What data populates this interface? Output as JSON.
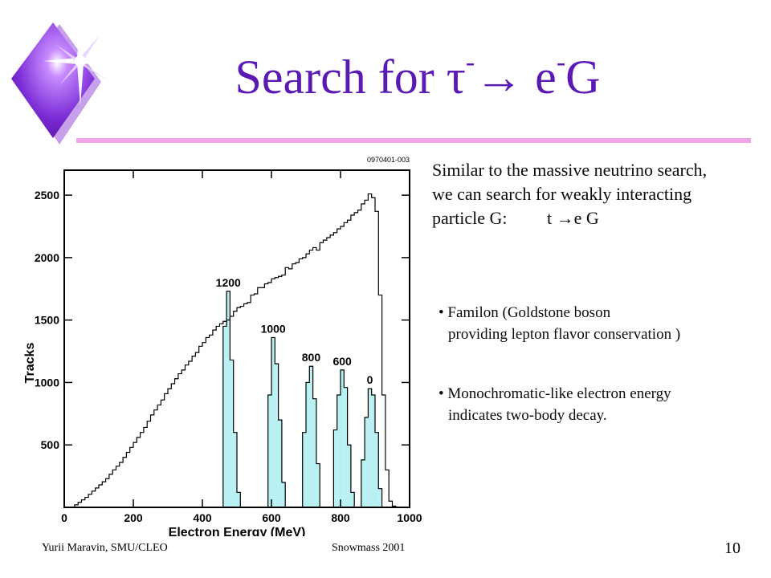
{
  "slide": {
    "title_pre": "Search for ",
    "title_tau": "τ",
    "title_sup1": "-",
    "title_arrow": "→",
    "title_e": " e",
    "title_sup2": "-",
    "title_g": "G",
    "intro_lines": [
      "Similar to the massive neutrino search,",
      "we can search for weakly interacting",
      "particle G:         t →e G"
    ],
    "bullets": [
      {
        "line1": "• Familon (Goldstone boson",
        "line2": "providing lepton flavor conservation )"
      },
      {
        "line1": "• Monochromatic-like electron energy",
        "line2": "indicates two-body decay."
      }
    ],
    "footer_left": "Yurii  Maravin, SMU/CLEO",
    "footer_center": "Snowmass  2001",
    "page_number": "10"
  },
  "chart_data": {
    "type": "histogram",
    "figure_id": "0970401-003",
    "xlabel": "Electron Energy (MeV)",
    "ylabel": "Tracks",
    "xlim": [
      0,
      1000
    ],
    "ylim": [
      0,
      2700
    ],
    "xticks": [
      0,
      200,
      400,
      600,
      800,
      1000
    ],
    "yticks": [
      500,
      1000,
      1500,
      2000,
      2500
    ],
    "colors": {
      "frame": "#000000",
      "peaks_fill": "#b9f0f2"
    },
    "background": {
      "bin_width": 10,
      "x": [
        20,
        30,
        40,
        50,
        60,
        70,
        80,
        90,
        100,
        110,
        120,
        130,
        140,
        150,
        160,
        170,
        180,
        190,
        200,
        210,
        220,
        230,
        240,
        250,
        260,
        270,
        280,
        290,
        300,
        310,
        320,
        330,
        340,
        350,
        360,
        370,
        380,
        390,
        400,
        410,
        420,
        430,
        440,
        450,
        460,
        470,
        480,
        490,
        500,
        510,
        520,
        530,
        540,
        550,
        560,
        570,
        580,
        590,
        600,
        610,
        620,
        630,
        640,
        650,
        660,
        670,
        680,
        690,
        700,
        710,
        720,
        730,
        740,
        750,
        760,
        770,
        780,
        790,
        800,
        810,
        820,
        830,
        840,
        850,
        860,
        870,
        880,
        890,
        900,
        910,
        920,
        930,
        940,
        950,
        960,
        970
      ],
      "y": [
        0,
        20,
        40,
        60,
        80,
        105,
        130,
        155,
        180,
        205,
        230,
        265,
        300,
        330,
        360,
        400,
        440,
        480,
        520,
        560,
        600,
        640,
        690,
        740,
        780,
        820,
        860,
        910,
        950,
        990,
        1030,
        1070,
        1100,
        1140,
        1170,
        1210,
        1240,
        1290,
        1320,
        1360,
        1380,
        1420,
        1450,
        1470,
        1490,
        1500,
        1530,
        1570,
        1600,
        1610,
        1630,
        1640,
        1700,
        1710,
        1760,
        1760,
        1790,
        1800,
        1830,
        1840,
        1850,
        1860,
        1920,
        1910,
        1950,
        1960,
        1990,
        2000,
        2030,
        2060,
        2080,
        2060,
        2120,
        2140,
        2160,
        2180,
        2200,
        2230,
        2250,
        2280,
        2300,
        2340,
        2360,
        2380,
        2430,
        2460,
        2510,
        2480,
        2370,
        1700,
        900,
        300,
        50,
        10,
        0,
        0
      ]
    },
    "signal_peaks": [
      {
        "label": "1200",
        "bins": [
          [
            460,
            470,
            1450
          ],
          [
            470,
            480,
            1730
          ],
          [
            480,
            490,
            1180
          ],
          [
            490,
            500,
            600
          ],
          [
            500,
            510,
            120
          ]
        ]
      },
      {
        "label": "1000",
        "bins": [
          [
            590,
            600,
            900
          ],
          [
            600,
            610,
            1360
          ],
          [
            610,
            620,
            1150
          ],
          [
            620,
            630,
            700
          ],
          [
            630,
            640,
            200
          ]
        ]
      },
      {
        "label": "800",
        "bins": [
          [
            690,
            700,
            600
          ],
          [
            700,
            710,
            1000
          ],
          [
            710,
            720,
            1130
          ],
          [
            720,
            730,
            870
          ],
          [
            730,
            740,
            350
          ]
        ]
      },
      {
        "label": "600",
        "bins": [
          [
            780,
            790,
            620
          ],
          [
            790,
            800,
            900
          ],
          [
            800,
            810,
            1100
          ],
          [
            810,
            820,
            960
          ],
          [
            820,
            830,
            500
          ],
          [
            830,
            840,
            120
          ]
        ]
      },
      {
        "label": "0",
        "bins": [
          [
            860,
            870,
            380
          ],
          [
            870,
            880,
            720
          ],
          [
            880,
            890,
            950
          ],
          [
            890,
            900,
            900
          ],
          [
            900,
            910,
            600
          ],
          [
            910,
            920,
            150
          ]
        ]
      }
    ]
  }
}
